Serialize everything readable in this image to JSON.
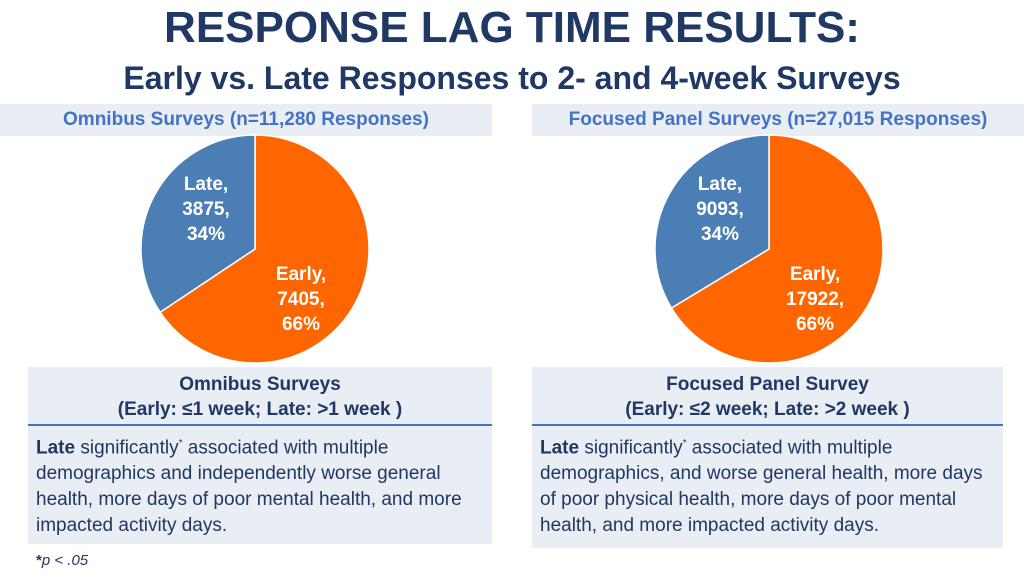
{
  "title": "RESPONSE LAG TIME RESULTS:",
  "subtitle": "Early vs. Late Responses to 2- and 4-week Surveys",
  "colors": {
    "early": "#ff6600",
    "late": "#4a7eb5",
    "title": "#1f3864",
    "accent": "#4472c4"
  },
  "chart_data": [
    {
      "type": "pie",
      "title": "Omnibus Surveys (n=11,280 Responses)",
      "slices": [
        {
          "label": "Early,",
          "value": 7405,
          "value_label": "7405,",
          "percent_label": "66%"
        },
        {
          "label": "Late,",
          "value": 3875,
          "value_label": "3875,",
          "percent_label": "34%"
        }
      ]
    },
    {
      "type": "pie",
      "title": "Focused Panel Surveys (n=27,015 Responses)",
      "slices": [
        {
          "label": "Early,",
          "value": 17922,
          "value_label": "17922,",
          "percent_label": "66%"
        },
        {
          "label": "Late,",
          "value": 9093,
          "value_label": "9093,",
          "percent_label": "34%"
        }
      ]
    }
  ],
  "boxes": {
    "left": {
      "title_line1": "Omnibus Surveys",
      "title_line2": "(Early: ≤1 week; Late: >1 week )",
      "bold_word": "Late",
      "text_before_mark": " significantly",
      "mark": "*",
      "text_after_mark": " associated with multiple demographics and independently worse general health, more days of poor mental health, and more impacted activity days."
    },
    "right": {
      "title_line1": "Focused Panel Survey",
      "title_line2": "(Early: ≤2 week; Late: >2 week )",
      "bold_word": "Late",
      "text_before_mark": " significantly",
      "mark": "*",
      "text_after_mark": " associated with multiple demographics, and worse general health, more days of poor physical health, more days of poor mental health, and more impacted activity days."
    }
  },
  "footnote": {
    "mark": "*",
    "text": "p < .05"
  }
}
